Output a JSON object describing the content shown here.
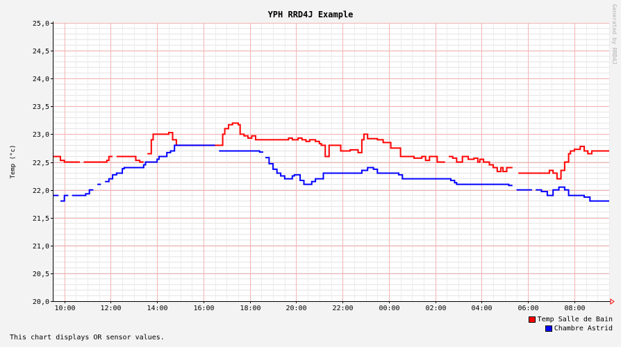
{
  "chart_data": {
    "type": "line",
    "title": "YPH RRD4J Example",
    "ylabel": "Temp (°c)",
    "xlabel": "",
    "watermark": "Generated by RRD4J",
    "comment": "This chart displays OR sensor values.",
    "ylim": [
      20.0,
      25.0
    ],
    "y_major_step": 0.5,
    "y_minor_step": 0.1,
    "ytick_labels": [
      "20,0",
      "20,5",
      "21,0",
      "21,5",
      "22,0",
      "22,5",
      "23,0",
      "23,5",
      "24,0",
      "24,5",
      "25,0"
    ],
    "xlim_hours": [
      9.5,
      33.5
    ],
    "xticks": [
      {
        "hour": 10,
        "label": "10:00"
      },
      {
        "hour": 12,
        "label": "12:00"
      },
      {
        "hour": 14,
        "label": "14:00"
      },
      {
        "hour": 16,
        "label": "16:00"
      },
      {
        "hour": 18,
        "label": "18:00"
      },
      {
        "hour": 20,
        "label": "20:00"
      },
      {
        "hour": 22,
        "label": "22:00"
      },
      {
        "hour": 24,
        "label": "00:00"
      },
      {
        "hour": 26,
        "label": "02:00"
      },
      {
        "hour": 28,
        "label": "04:00"
      },
      {
        "hour": 30,
        "label": "06:00"
      },
      {
        "hour": 32,
        "label": "08:00"
      }
    ],
    "grid": true,
    "legend_position": "bottom-right",
    "series": [
      {
        "name": "Temp Salle de Bain",
        "color": "#ff0000",
        "points": [
          [
            9.5,
            22.6
          ],
          [
            9.83,
            22.53
          ],
          [
            10.0,
            22.5
          ],
          [
            10.67,
            null
          ],
          [
            10.83,
            22.5
          ],
          [
            11.83,
            22.53
          ],
          [
            11.92,
            22.6
          ],
          [
            12.08,
            null
          ],
          [
            12.25,
            22.6
          ],
          [
            13.08,
            22.53
          ],
          [
            13.25,
            22.5
          ],
          [
            13.42,
            null
          ],
          [
            13.58,
            22.65
          ],
          [
            13.75,
            22.9
          ],
          [
            13.83,
            23.0
          ],
          [
            14.5,
            23.03
          ],
          [
            14.67,
            22.9
          ],
          [
            14.83,
            22.8
          ],
          [
            16.67,
            22.8
          ],
          [
            16.83,
            23.0
          ],
          [
            16.92,
            23.1
          ],
          [
            17.08,
            23.17
          ],
          [
            17.25,
            23.2
          ],
          [
            17.5,
            23.17
          ],
          [
            17.58,
            23.0
          ],
          [
            17.75,
            22.97
          ],
          [
            17.92,
            22.93
          ],
          [
            18.08,
            22.97
          ],
          [
            18.25,
            22.9
          ],
          [
            19.67,
            22.93
          ],
          [
            19.83,
            22.9
          ],
          [
            20.08,
            22.93
          ],
          [
            20.25,
            22.9
          ],
          [
            20.42,
            22.87
          ],
          [
            20.58,
            22.9
          ],
          [
            20.83,
            22.87
          ],
          [
            21.0,
            22.83
          ],
          [
            21.08,
            22.8
          ],
          [
            21.25,
            22.6
          ],
          [
            21.42,
            22.8
          ],
          [
            21.92,
            22.7
          ],
          [
            22.33,
            22.72
          ],
          [
            22.67,
            22.67
          ],
          [
            22.83,
            22.9
          ],
          [
            22.92,
            23.0
          ],
          [
            23.08,
            22.92
          ],
          [
            23.5,
            22.9
          ],
          [
            23.75,
            22.85
          ],
          [
            24.08,
            22.75
          ],
          [
            24.5,
            22.6
          ],
          [
            25.08,
            22.57
          ],
          [
            25.42,
            22.6
          ],
          [
            25.58,
            22.53
          ],
          [
            25.75,
            22.6
          ],
          [
            26.08,
            22.5
          ],
          [
            26.42,
            null
          ],
          [
            26.58,
            22.6
          ],
          [
            26.75,
            22.57
          ],
          [
            26.92,
            22.5
          ],
          [
            27.17,
            22.6
          ],
          [
            27.42,
            22.55
          ],
          [
            27.67,
            22.57
          ],
          [
            27.83,
            22.5
          ],
          [
            27.92,
            22.55
          ],
          [
            28.08,
            22.5
          ],
          [
            28.33,
            22.45
          ],
          [
            28.5,
            22.4
          ],
          [
            28.67,
            22.33
          ],
          [
            28.83,
            22.4
          ],
          [
            28.92,
            22.33
          ],
          [
            29.08,
            22.4
          ],
          [
            29.33,
            null
          ],
          [
            29.58,
            22.3
          ],
          [
            30.92,
            22.35
          ],
          [
            31.08,
            22.3
          ],
          [
            31.25,
            22.2
          ],
          [
            31.42,
            22.35
          ],
          [
            31.58,
            22.5
          ],
          [
            31.75,
            22.65
          ],
          [
            31.83,
            22.7
          ],
          [
            32.0,
            22.73
          ],
          [
            32.25,
            22.78
          ],
          [
            32.42,
            22.7
          ],
          [
            32.58,
            22.65
          ],
          [
            32.75,
            22.7
          ],
          [
            33.5,
            22.7
          ]
        ]
      },
      {
        "name": "Chambre Astrid",
        "color": "#0000ff",
        "points": [
          [
            9.5,
            21.9
          ],
          [
            9.75,
            null
          ],
          [
            9.83,
            21.8
          ],
          [
            10.0,
            21.9
          ],
          [
            10.17,
            null
          ],
          [
            10.33,
            21.9
          ],
          [
            10.92,
            21.93
          ],
          [
            11.08,
            22.0
          ],
          [
            11.25,
            null
          ],
          [
            11.42,
            22.1
          ],
          [
            11.58,
            null
          ],
          [
            11.75,
            22.15
          ],
          [
            11.92,
            22.2
          ],
          [
            12.08,
            22.27
          ],
          [
            12.25,
            22.3
          ],
          [
            12.5,
            22.38
          ],
          [
            12.58,
            22.4
          ],
          [
            13.42,
            22.45
          ],
          [
            13.5,
            22.5
          ],
          [
            14.0,
            22.55
          ],
          [
            14.08,
            22.6
          ],
          [
            14.42,
            22.67
          ],
          [
            14.58,
            22.7
          ],
          [
            14.75,
            22.8
          ],
          [
            16.5,
            null
          ],
          [
            16.67,
            22.7
          ],
          [
            18.42,
            22.68
          ],
          [
            18.58,
            null
          ],
          [
            18.67,
            22.58
          ],
          [
            18.83,
            22.47
          ],
          [
            19.0,
            22.37
          ],
          [
            19.17,
            22.3
          ],
          [
            19.33,
            22.25
          ],
          [
            19.5,
            22.2
          ],
          [
            19.83,
            22.25
          ],
          [
            19.92,
            22.27
          ],
          [
            20.17,
            22.17
          ],
          [
            20.33,
            22.1
          ],
          [
            20.67,
            22.15
          ],
          [
            20.83,
            22.2
          ],
          [
            21.17,
            22.3
          ],
          [
            22.83,
            22.35
          ],
          [
            23.08,
            22.4
          ],
          [
            23.33,
            22.37
          ],
          [
            23.5,
            22.3
          ],
          [
            24.42,
            22.27
          ],
          [
            24.58,
            22.2
          ],
          [
            26.67,
            22.17
          ],
          [
            26.83,
            22.13
          ],
          [
            26.92,
            22.1
          ],
          [
            28.83,
            22.1
          ],
          [
            29.17,
            22.08
          ],
          [
            29.33,
            null
          ],
          [
            29.5,
            22.0
          ],
          [
            30.17,
            null
          ],
          [
            30.33,
            22.0
          ],
          [
            30.58,
            21.97
          ],
          [
            30.83,
            21.9
          ],
          [
            31.08,
            22.0
          ],
          [
            31.33,
            22.05
          ],
          [
            31.58,
            22.0
          ],
          [
            31.75,
            21.9
          ],
          [
            32.42,
            21.87
          ],
          [
            32.67,
            21.8
          ],
          [
            33.5,
            21.8
          ]
        ]
      }
    ]
  }
}
